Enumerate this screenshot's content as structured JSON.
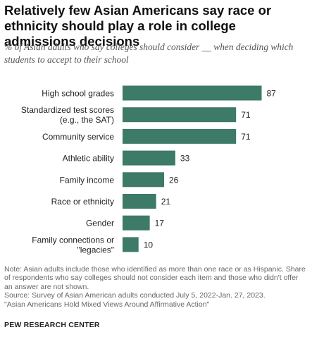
{
  "title": "Relatively few Asian Americans say race or ethnicity should play a role in college admissions decisions",
  "subtitle": "% of Asian adults who say colleges should consider __ when deciding which students to accept to their school",
  "chart_data": {
    "type": "bar",
    "orientation": "horizontal",
    "categories": [
      [
        "High school grades"
      ],
      [
        "Standardized test scores",
        "(e.g., the SAT)"
      ],
      [
        "Community service"
      ],
      [
        "Athletic ability"
      ],
      [
        "Family income"
      ],
      [
        "Race or ethnicity"
      ],
      [
        "Gender"
      ],
      [
        "Family connections or",
        "\"legacies\""
      ]
    ],
    "values": [
      87,
      71,
      71,
      33,
      26,
      21,
      17,
      10
    ],
    "value_labels": [
      "87",
      "71",
      "71",
      "33",
      "26",
      "21",
      "17",
      "10"
    ],
    "xlim": [
      0,
      100
    ],
    "bar_color": "#3d7a68",
    "grid": false,
    "legend": "none"
  },
  "note": {
    "lines": [
      "Note: Asian adults include those who identified as more than one race or as Hispanic. Share",
      "of respondents who say colleges should not consider each item and those who didn't offer",
      "an answer are not shown.",
      "Source: Survey of Asian American adults conducted July 5, 2022-Jan. 27, 2023.",
      "\"Asian Americans Hold Mixed Views Around Affirmative Action\""
    ]
  },
  "brand": "PEW RESEARCH CENTER"
}
